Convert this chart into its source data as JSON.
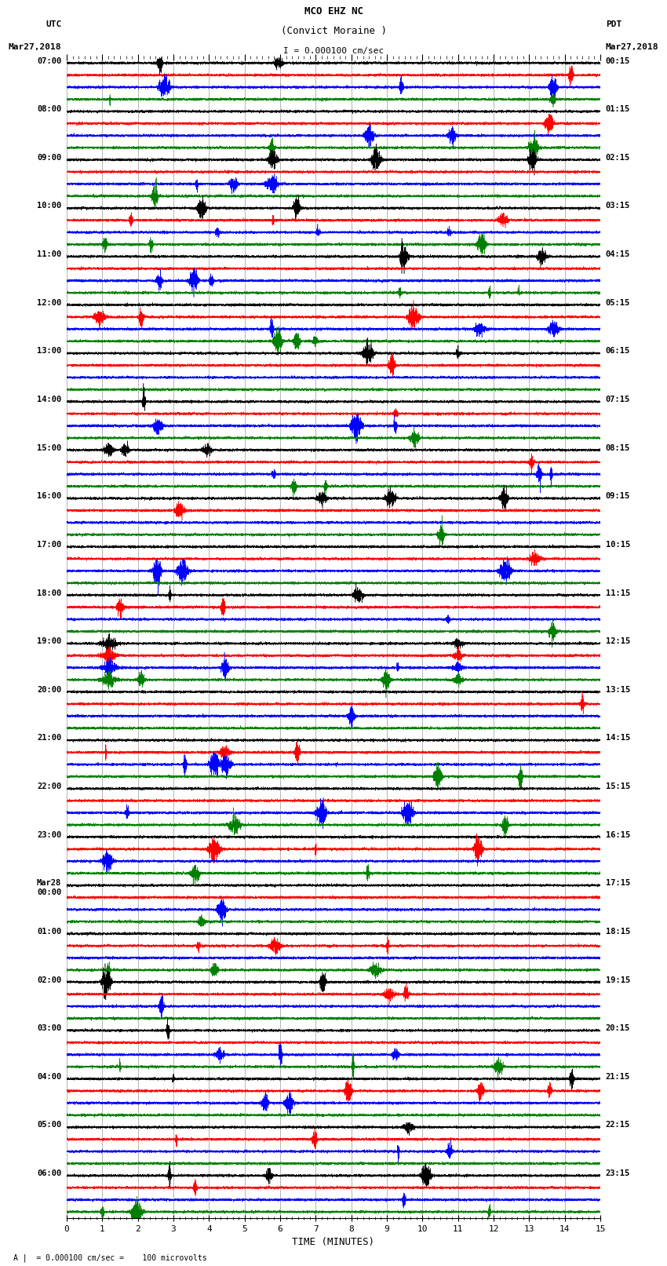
{
  "title_line1": "MCO EHZ NC",
  "title_line2": "(Convict Moraine )",
  "scale_bar_text": "I = 0.000100 cm/sec",
  "left_header": "UTC",
  "left_date": "Mar27,2018",
  "right_header": "PDT",
  "right_date": "Mar27,2018",
  "xlabel": "TIME (MINUTES)",
  "bottom_note": "A |  = 0.000100 cm/sec =    100 microvolts",
  "trace_colors": [
    "black",
    "red",
    "blue",
    "green"
  ],
  "n_rows": 24,
  "n_minutes": 15,
  "samples_per_minute": 600,
  "background_color": "white",
  "grid_color": "#999999",
  "trace_amplitude": 0.38,
  "figwidth": 8.5,
  "figheight": 16.13,
  "hour_labels_left": [
    "07:00",
    "08:00",
    "09:00",
    "10:00",
    "11:00",
    "12:00",
    "13:00",
    "14:00",
    "15:00",
    "16:00",
    "17:00",
    "18:00",
    "19:00",
    "20:00",
    "21:00",
    "22:00",
    "23:00",
    "Mar28\n00:00",
    "01:00",
    "02:00",
    "03:00",
    "04:00",
    "05:00",
    "06:00"
  ],
  "hour_labels_right": [
    "00:15",
    "01:15",
    "02:15",
    "03:15",
    "04:15",
    "05:15",
    "06:15",
    "07:15",
    "08:15",
    "09:15",
    "10:15",
    "11:15",
    "12:15",
    "13:15",
    "14:15",
    "15:15",
    "16:15",
    "17:15",
    "18:15",
    "19:15",
    "20:15",
    "21:15",
    "22:15",
    "23:15"
  ]
}
